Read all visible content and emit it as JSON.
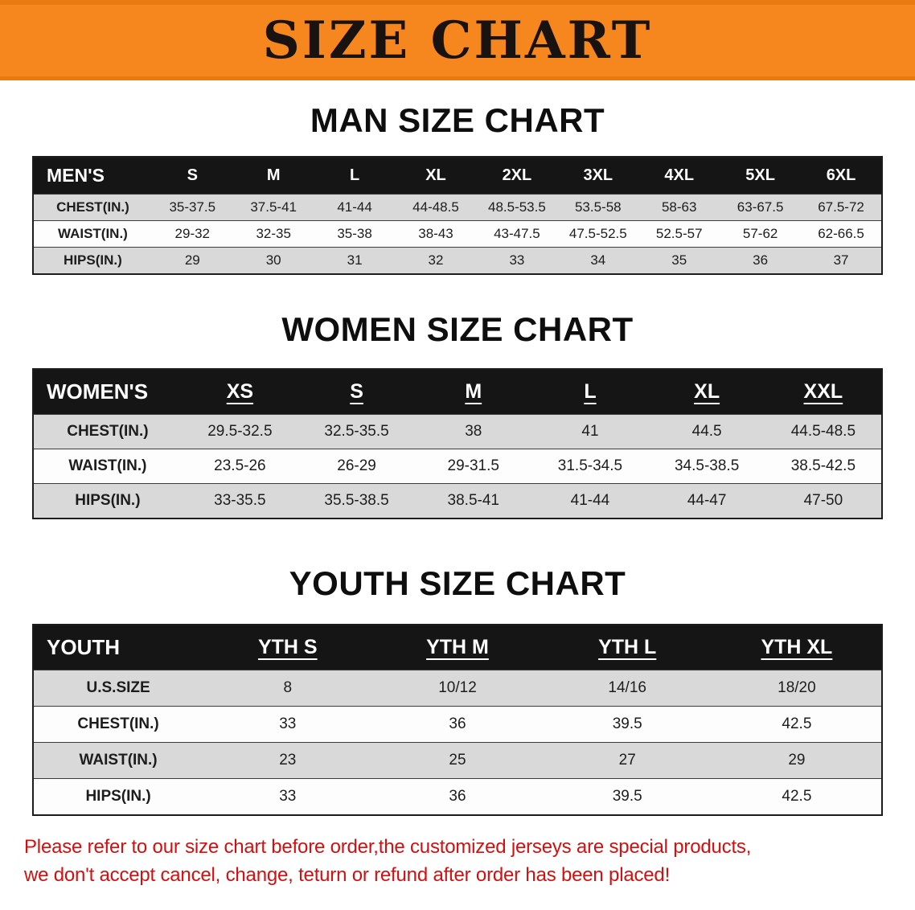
{
  "banner": {
    "title": "SIZE CHART"
  },
  "colors": {
    "banner_bg": "#f6871f",
    "banner_text": "#181310",
    "header_bg": "#151515",
    "header_text": "#ffffff",
    "row_alt": "#d9d9d9",
    "row_base": "#fdfdfd",
    "note_red": "#d40f0f",
    "border": "#1c1c1c"
  },
  "sections": [
    {
      "id": "men",
      "heading": "MAN SIZE CHART",
      "table": {
        "first_col_width": "14%",
        "underline_header": false,
        "header": [
          "MEN'S",
          "S",
          "M",
          "L",
          "XL",
          "2XL",
          "3XL",
          "4XL",
          "5XL",
          "6XL"
        ],
        "rows": [
          [
            "CHEST(IN.)",
            "35-37.5",
            "37.5-41",
            "41-44",
            "44-48.5",
            "48.5-53.5",
            "53.5-58",
            "58-63",
            "63-67.5",
            "67.5-72"
          ],
          [
            "WAIST(IN.)",
            "29-32",
            "32-35",
            "35-38",
            "38-43",
            "43-47.5",
            "47.5-52.5",
            "52.5-57",
            "57-62",
            "62-66.5"
          ],
          [
            "HIPS(IN.)",
            "29",
            "30",
            "31",
            "32",
            "33",
            "34",
            "35",
            "36",
            "37"
          ]
        ]
      }
    },
    {
      "id": "women",
      "heading": "WOMEN SIZE CHART",
      "table": {
        "first_col_width": "17.5%",
        "underline_header": true,
        "header": [
          "WOMEN'S",
          "XS",
          "S",
          "M",
          "L",
          "XL",
          "XXL"
        ],
        "rows": [
          [
            "CHEST(IN.)",
            "29.5-32.5",
            "32.5-35.5",
            "38",
            "41",
            "44.5",
            "44.5-48.5"
          ],
          [
            "WAIST(IN.)",
            "23.5-26",
            "26-29",
            "29-31.5",
            "31.5-34.5",
            "34.5-38.5",
            "38.5-42.5"
          ],
          [
            "HIPS(IN.)",
            "33-35.5",
            "35.5-38.5",
            "38.5-41",
            "41-44",
            "44-47",
            "47-50"
          ]
        ]
      }
    },
    {
      "id": "youth",
      "heading": "YOUTH SIZE CHART",
      "table": {
        "first_col_width": "20%",
        "underline_header": true,
        "header": [
          "YOUTH",
          "YTH S",
          "YTH M",
          "YTH L",
          "YTH XL"
        ],
        "rows": [
          [
            "U.S.SIZE",
            "8",
            "10/12",
            "14/16",
            "18/20"
          ],
          [
            "CHEST(IN.)",
            "33",
            "36",
            "39.5",
            "42.5"
          ],
          [
            "WAIST(IN.)",
            "23",
            "25",
            "27",
            "29"
          ],
          [
            "HIPS(IN.)",
            "33",
            "36",
            "39.5",
            "42.5"
          ]
        ]
      }
    }
  ],
  "footer": {
    "lines": [
      "Please refer to our size chart before order,the customized jerseys are special products,",
      "we don't accept cancel, change, teturn or refund after order has been placed!"
    ]
  }
}
